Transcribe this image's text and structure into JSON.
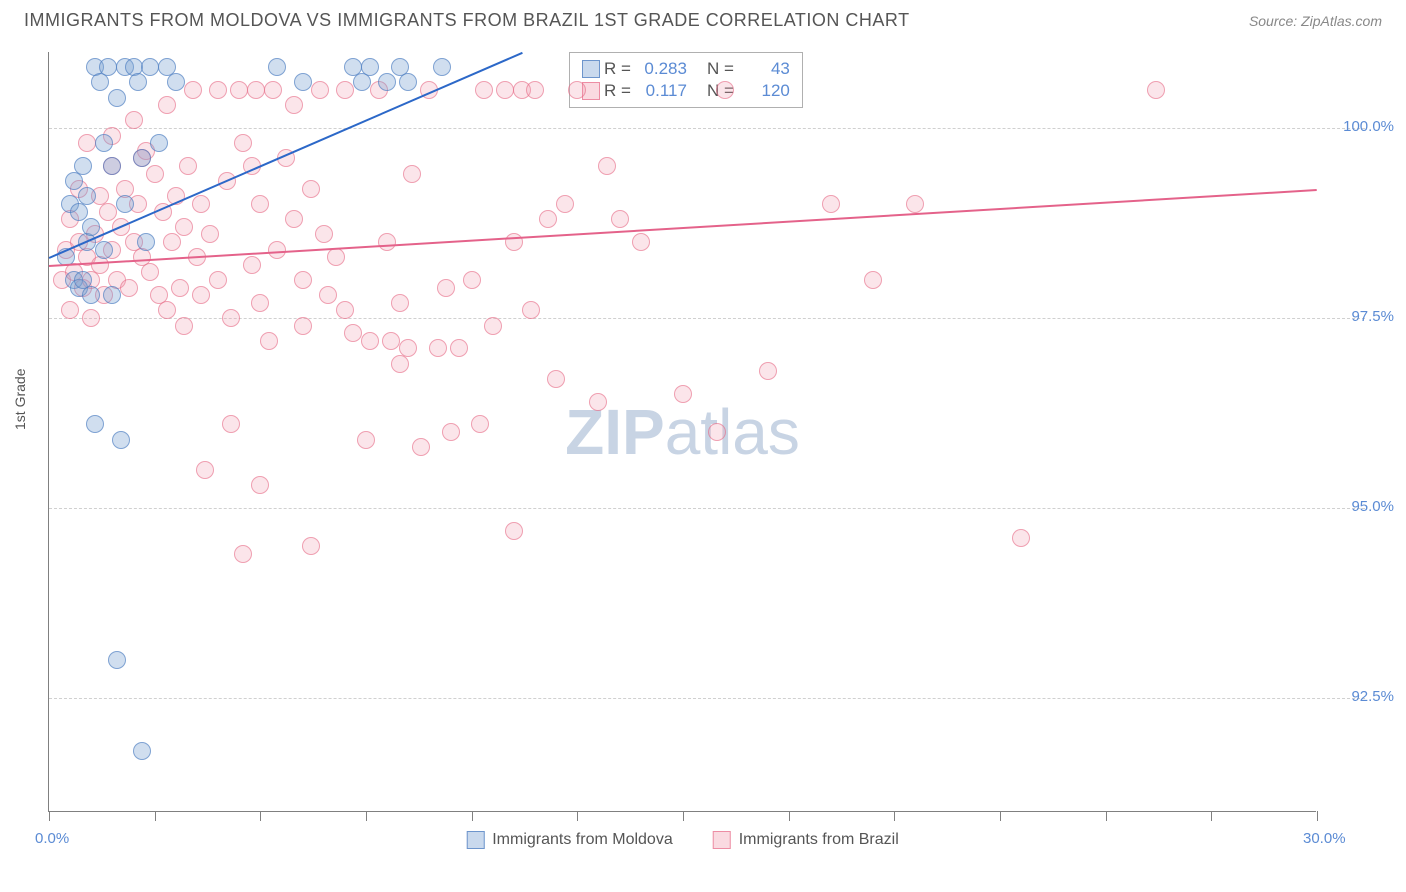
{
  "header": {
    "title": "IMMIGRANTS FROM MOLDOVA VS IMMIGRANTS FROM BRAZIL 1ST GRADE CORRELATION CHART",
    "source": "Source: ZipAtlas.com"
  },
  "chart": {
    "type": "scatter",
    "ylabel": "1st Grade",
    "xlim": [
      0,
      30
    ],
    "ylim": [
      91,
      101
    ],
    "x_ticks": [
      0,
      2.5,
      5,
      7.5,
      10,
      12.5,
      15,
      17.5,
      20,
      22.5,
      25,
      27.5,
      30
    ],
    "x_tick_labels": {
      "0": "0.0%",
      "30": "30.0%"
    },
    "y_gridlines": [
      92.5,
      95.0,
      97.5,
      100.0
    ],
    "y_tick_labels": [
      "92.5%",
      "95.0%",
      "97.5%",
      "100.0%"
    ],
    "background_color": "#ffffff",
    "grid_color": "#d0d0d0",
    "axis_color": "#808080",
    "tick_label_color": "#5b8bd4",
    "title_color": "#555555",
    "marker_radius": 9,
    "marker_opacity": 0.35,
    "series": [
      {
        "name": "Immigrants from Moldova",
        "color_fill": "rgba(120,160,210,0.35)",
        "color_stroke": "rgba(70,120,190,0.6)",
        "trend_color": "#2c68c8",
        "r": 0.283,
        "n": 43,
        "trend": {
          "x1": 0,
          "y1": 98.3,
          "x2": 11.2,
          "y2": 101.0
        },
        "points": [
          [
            0.4,
            98.3
          ],
          [
            0.5,
            99.0
          ],
          [
            0.6,
            98.0
          ],
          [
            0.6,
            99.3
          ],
          [
            0.7,
            97.9
          ],
          [
            0.7,
            98.9
          ],
          [
            0.8,
            98.0
          ],
          [
            0.8,
            99.5
          ],
          [
            0.9,
            98.5
          ],
          [
            0.9,
            99.1
          ],
          [
            1.0,
            97.8
          ],
          [
            1.0,
            98.7
          ],
          [
            1.1,
            100.8
          ],
          [
            1.2,
            100.6
          ],
          [
            1.3,
            99.8
          ],
          [
            1.3,
            98.4
          ],
          [
            1.4,
            100.8
          ],
          [
            1.5,
            99.5
          ],
          [
            1.5,
            97.8
          ],
          [
            1.6,
            100.4
          ],
          [
            1.8,
            100.8
          ],
          [
            1.8,
            99.0
          ],
          [
            2.0,
            100.8
          ],
          [
            2.1,
            100.6
          ],
          [
            2.2,
            99.6
          ],
          [
            2.3,
            98.5
          ],
          [
            2.4,
            100.8
          ],
          [
            2.6,
            99.8
          ],
          [
            2.8,
            100.8
          ],
          [
            3.0,
            100.6
          ],
          [
            1.1,
            96.1
          ],
          [
            1.7,
            95.9
          ],
          [
            1.6,
            93.0
          ],
          [
            2.2,
            91.8
          ],
          [
            7.2,
            100.8
          ],
          [
            7.4,
            100.6
          ],
          [
            7.6,
            100.8
          ],
          [
            8.0,
            100.6
          ],
          [
            8.3,
            100.8
          ],
          [
            8.5,
            100.6
          ],
          [
            9.3,
            100.8
          ],
          [
            6.0,
            100.6
          ],
          [
            5.4,
            100.8
          ]
        ]
      },
      {
        "name": "Immigrants from Brazil",
        "color_fill": "rgba(240,150,170,0.25)",
        "color_stroke": "rgba(230,100,130,0.55)",
        "trend_color": "#e4628a",
        "r": 0.117,
        "n": 120,
        "trend": {
          "x1": 0,
          "y1": 98.2,
          "x2": 30,
          "y2": 99.2
        },
        "points": [
          [
            0.3,
            98.0
          ],
          [
            0.4,
            98.4
          ],
          [
            0.5,
            98.8
          ],
          [
            0.5,
            97.6
          ],
          [
            0.6,
            98.1
          ],
          [
            0.7,
            99.2
          ],
          [
            0.7,
            98.5
          ],
          [
            0.8,
            97.9
          ],
          [
            0.9,
            98.3
          ],
          [
            0.9,
            99.8
          ],
          [
            1.0,
            98.0
          ],
          [
            1.0,
            97.5
          ],
          [
            1.1,
            98.6
          ],
          [
            1.2,
            99.1
          ],
          [
            1.2,
            98.2
          ],
          [
            1.3,
            97.8
          ],
          [
            1.4,
            98.9
          ],
          [
            1.5,
            98.4
          ],
          [
            1.5,
            99.5
          ],
          [
            1.6,
            98.0
          ],
          [
            1.7,
            98.7
          ],
          [
            1.8,
            99.2
          ],
          [
            1.9,
            97.9
          ],
          [
            2.0,
            98.5
          ],
          [
            2.0,
            100.1
          ],
          [
            2.1,
            99.0
          ],
          [
            2.2,
            98.3
          ],
          [
            2.3,
            99.7
          ],
          [
            2.4,
            98.1
          ],
          [
            2.5,
            99.4
          ],
          [
            2.6,
            97.8
          ],
          [
            2.7,
            98.9
          ],
          [
            2.8,
            100.3
          ],
          [
            2.9,
            98.5
          ],
          [
            3.0,
            99.1
          ],
          [
            3.1,
            97.9
          ],
          [
            3.2,
            98.7
          ],
          [
            3.3,
            99.5
          ],
          [
            3.4,
            100.5
          ],
          [
            3.5,
            98.3
          ],
          [
            3.6,
            99.0
          ],
          [
            3.8,
            98.6
          ],
          [
            1.5,
            99.9
          ],
          [
            2.2,
            99.6
          ],
          [
            2.8,
            97.6
          ],
          [
            3.2,
            97.4
          ],
          [
            3.6,
            97.8
          ],
          [
            4.0,
            100.5
          ],
          [
            4.0,
            98.0
          ],
          [
            4.2,
            99.3
          ],
          [
            4.3,
            97.5
          ],
          [
            4.5,
            100.5
          ],
          [
            4.6,
            99.8
          ],
          [
            4.8,
            98.2
          ],
          [
            4.8,
            99.5
          ],
          [
            4.9,
            100.5
          ],
          [
            5.0,
            99.0
          ],
          [
            5.0,
            97.7
          ],
          [
            5.2,
            97.2
          ],
          [
            5.3,
            100.5
          ],
          [
            5.4,
            98.4
          ],
          [
            5.6,
            99.6
          ],
          [
            5.8,
            98.8
          ],
          [
            5.8,
            100.3
          ],
          [
            6.0,
            97.4
          ],
          [
            6.0,
            98.0
          ],
          [
            6.2,
            99.2
          ],
          [
            6.4,
            100.5
          ],
          [
            6.5,
            98.6
          ],
          [
            6.6,
            97.8
          ],
          [
            6.8,
            98.3
          ],
          [
            7.0,
            97.6
          ],
          [
            7.0,
            100.5
          ],
          [
            7.2,
            97.3
          ],
          [
            7.5,
            95.9
          ],
          [
            7.6,
            97.2
          ],
          [
            7.8,
            100.5
          ],
          [
            8.0,
            98.5
          ],
          [
            8.1,
            97.2
          ],
          [
            8.3,
            96.9
          ],
          [
            8.3,
            97.7
          ],
          [
            8.5,
            97.1
          ],
          [
            8.6,
            99.4
          ],
          [
            8.8,
            95.8
          ],
          [
            9.0,
            100.5
          ],
          [
            9.2,
            97.1
          ],
          [
            9.4,
            97.9
          ],
          [
            9.5,
            96.0
          ],
          [
            9.7,
            97.1
          ],
          [
            10.0,
            98.0
          ],
          [
            10.2,
            96.1
          ],
          [
            10.3,
            100.5
          ],
          [
            10.5,
            97.4
          ],
          [
            10.8,
            100.5
          ],
          [
            11.0,
            98.5
          ],
          [
            11.0,
            94.7
          ],
          [
            11.2,
            100.5
          ],
          [
            11.4,
            97.6
          ],
          [
            11.5,
            100.5
          ],
          [
            11.8,
            98.8
          ],
          [
            12.0,
            96.7
          ],
          [
            12.2,
            99.0
          ],
          [
            12.5,
            100.5
          ],
          [
            13.0,
            96.4
          ],
          [
            13.2,
            99.5
          ],
          [
            13.5,
            98.8
          ],
          [
            14.0,
            98.5
          ],
          [
            15.0,
            96.5
          ],
          [
            15.8,
            96.0
          ],
          [
            16.0,
            100.5
          ],
          [
            17.0,
            96.8
          ],
          [
            18.5,
            99.0
          ],
          [
            19.5,
            98.0
          ],
          [
            20.5,
            99.0
          ],
          [
            23.0,
            94.6
          ],
          [
            4.6,
            94.4
          ],
          [
            5.0,
            95.3
          ],
          [
            26.2,
            100.5
          ],
          [
            6.2,
            94.5
          ],
          [
            3.7,
            95.5
          ],
          [
            4.3,
            96.1
          ]
        ]
      }
    ],
    "watermark": {
      "text_bold": "ZIP",
      "text_rest": "atlas",
      "color": "#c8d4e4"
    },
    "legend": {
      "moldova_label": "Immigrants from Moldova",
      "brazil_label": "Immigrants from Brazil"
    },
    "stats_box": {
      "r_label": "R =",
      "n_label": "N ="
    }
  }
}
